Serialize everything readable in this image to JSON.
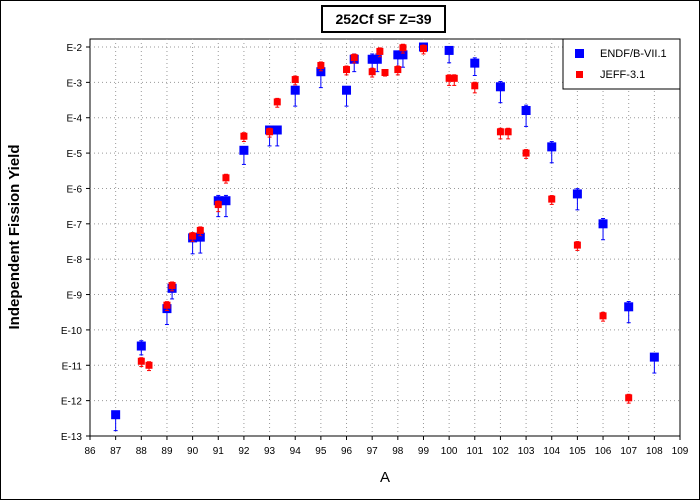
{
  "chart_data": {
    "type": "scatter",
    "title": "252Cf SF Z=39",
    "xlabel": "A",
    "ylabel": "Independent Fission Yield",
    "xlim": [
      86,
      109
    ],
    "ylog": true,
    "ylim_exp": [
      -13,
      -2
    ],
    "ytick_labels": [
      "E-2",
      "E-3",
      "E-4",
      "E-5",
      "E-6",
      "E-7",
      "E-8",
      "E-9",
      "E-10",
      "E-11",
      "E-12",
      "E-13"
    ],
    "xtick_labels": [
      "86",
      "87",
      "88",
      "89",
      "90",
      "91",
      "92",
      "93",
      "94",
      "95",
      "96",
      "97",
      "98",
      "99",
      "100",
      "101",
      "102",
      "103",
      "104",
      "105",
      "106",
      "107",
      "108",
      "109"
    ],
    "grid": true,
    "legend_position": "top-right",
    "series": [
      {
        "name": "ENDF/B-VII.1",
        "color": "#0000ff",
        "marker": "square",
        "points": [
          {
            "x": 87,
            "y": 4e-13,
            "err_up_exp": 0.1,
            "err_down_exp": 0.45
          },
          {
            "x": 88,
            "y": 3.5e-11,
            "err_up_exp": 0.15,
            "err_down_exp": 0.25
          },
          {
            "x": 89,
            "y": 4e-10,
            "err_up_exp": 0.1,
            "err_down_exp": 0.45
          },
          {
            "x": 89.2,
            "y": 1.5e-09,
            "err_up_exp": 0.1,
            "err_down_exp": 0.3
          },
          {
            "x": 90,
            "y": 4e-08,
            "err_up_exp": 0.1,
            "err_down_exp": 0.45
          },
          {
            "x": 90.3,
            "y": 4.2e-08,
            "err_up_exp": 0.1,
            "err_down_exp": 0.45
          },
          {
            "x": 91,
            "y": 4.5e-07,
            "err_up_exp": 0.15,
            "err_down_exp": 0.45
          },
          {
            "x": 91.3,
            "y": 4.5e-07,
            "err_up_exp": 0.15,
            "err_down_exp": 0.45
          },
          {
            "x": 92,
            "y": 1.2e-05,
            "err_up_exp": 0.1,
            "err_down_exp": 0.4
          },
          {
            "x": 93,
            "y": 4.5e-05,
            "err_up_exp": 0.1,
            "err_down_exp": 0.45
          },
          {
            "x": 93.3,
            "y": 4.5e-05,
            "err_up_exp": 0.1,
            "err_down_exp": 0.45
          },
          {
            "x": 94,
            "y": 0.0006,
            "err_up_exp": 0.1,
            "err_down_exp": 0.45
          },
          {
            "x": 95,
            "y": 0.002,
            "err_up_exp": 0.1,
            "err_down_exp": 0.45
          },
          {
            "x": 96,
            "y": 0.0006,
            "err_up_exp": 0.1,
            "err_down_exp": 0.45
          },
          {
            "x": 96.3,
            "y": 0.0045,
            "err_up_exp": 0.15,
            "err_down_exp": 0.35
          },
          {
            "x": 97,
            "y": 0.0045,
            "err_up_exp": 0.15,
            "err_down_exp": 0.35
          },
          {
            "x": 97.2,
            "y": 0.0045,
            "err_up_exp": 0.15,
            "err_down_exp": 0.35
          },
          {
            "x": 98,
            "y": 0.006,
            "err_up_exp": 0.1,
            "err_down_exp": 0.35
          },
          {
            "x": 98.2,
            "y": 0.006,
            "err_up_exp": 0.1,
            "err_down_exp": 0.35
          },
          {
            "x": 99,
            "y": 0.01,
            "err_up_exp": 0.05,
            "err_down_exp": 0.1
          },
          {
            "x": 100,
            "y": 0.008,
            "err_up_exp": 0.1,
            "err_down_exp": 0.35
          },
          {
            "x": 101,
            "y": 0.0035,
            "err_up_exp": 0.15,
            "err_down_exp": 0.35
          },
          {
            "x": 102,
            "y": 0.00075,
            "err_up_exp": 0.15,
            "err_down_exp": 0.45
          },
          {
            "x": 103,
            "y": 0.00016,
            "err_up_exp": 0.15,
            "err_down_exp": 0.45
          },
          {
            "x": 104,
            "y": 1.5e-05,
            "err_up_exp": 0.15,
            "err_down_exp": 0.45
          },
          {
            "x": 105,
            "y": 7e-07,
            "err_up_exp": 0.15,
            "err_down_exp": 0.45
          },
          {
            "x": 106,
            "y": 1e-07,
            "err_up_exp": 0.15,
            "err_down_exp": 0.45
          },
          {
            "x": 107,
            "y": 4.5e-10,
            "err_up_exp": 0.15,
            "err_down_exp": 0.45
          },
          {
            "x": 108,
            "y": 1.7e-11,
            "err_up_exp": 0.1,
            "err_down_exp": 0.45
          }
        ]
      },
      {
        "name": "JEFF-3.1",
        "color": "#ff0000",
        "marker": "square",
        "points": [
          {
            "x": 88,
            "y": 1.3e-11,
            "err_up_exp": 0.1,
            "err_down_exp": 0.15
          },
          {
            "x": 88.3,
            "y": 1e-11,
            "err_up_exp": 0.1,
            "err_down_exp": 0.15
          },
          {
            "x": 89,
            "y": 5e-10,
            "err_up_exp": 0.1,
            "err_down_exp": 0.15
          },
          {
            "x": 89.2,
            "y": 1.8e-09,
            "err_up_exp": 0.1,
            "err_down_exp": 0.15
          },
          {
            "x": 90,
            "y": 4.5e-08,
            "err_up_exp": 0.1,
            "err_down_exp": 0.15
          },
          {
            "x": 90.3,
            "y": 6.5e-08,
            "err_up_exp": 0.1,
            "err_down_exp": 0.15
          },
          {
            "x": 91,
            "y": 3.5e-07,
            "err_up_exp": 0.1,
            "err_down_exp": 0.2
          },
          {
            "x": 91.3,
            "y": 2e-06,
            "err_up_exp": 0.1,
            "err_down_exp": 0.15
          },
          {
            "x": 92,
            "y": 3e-05,
            "err_up_exp": 0.1,
            "err_down_exp": 0.15
          },
          {
            "x": 93,
            "y": 4e-05,
            "err_up_exp": 0.1,
            "err_down_exp": 0.15
          },
          {
            "x": 93.3,
            "y": 0.00028,
            "err_up_exp": 0.1,
            "err_down_exp": 0.15
          },
          {
            "x": 94,
            "y": 0.0012,
            "err_up_exp": 0.1,
            "err_down_exp": 0.15
          },
          {
            "x": 95,
            "y": 0.003,
            "err_up_exp": 0.1,
            "err_down_exp": 0.15
          },
          {
            "x": 96,
            "y": 0.0023,
            "err_up_exp": 0.1,
            "err_down_exp": 0.15
          },
          {
            "x": 96.3,
            "y": 0.005,
            "err_up_exp": 0.1,
            "err_down_exp": 0.15
          },
          {
            "x": 97,
            "y": 0.002,
            "err_up_exp": 0.1,
            "err_down_exp": 0.15
          },
          {
            "x": 97.3,
            "y": 0.0075,
            "err_up_exp": 0.1,
            "err_down_exp": 0.15
          },
          {
            "x": 97.5,
            "y": 0.0019,
            "err_up_exp": 0.05,
            "err_down_exp": 0.1
          },
          {
            "x": 98,
            "y": 0.0023,
            "err_up_exp": 0.1,
            "err_down_exp": 0.15
          },
          {
            "x": 98.2,
            "y": 0.0095,
            "err_up_exp": 0.1,
            "err_down_exp": 0.15
          },
          {
            "x": 99,
            "y": 0.009,
            "err_up_exp": 0.1,
            "err_down_exp": 0.15
          },
          {
            "x": 100,
            "y": 0.0013,
            "err_up_exp": 0.1,
            "err_down_exp": 0.2
          },
          {
            "x": 100.2,
            "y": 0.0013,
            "err_up_exp": 0.1,
            "err_down_exp": 0.2
          },
          {
            "x": 101,
            "y": 0.0008,
            "err_up_exp": 0.1,
            "err_down_exp": 0.2
          },
          {
            "x": 102,
            "y": 4e-05,
            "err_up_exp": 0.1,
            "err_down_exp": 0.2
          },
          {
            "x": 102.3,
            "y": 4e-05,
            "err_up_exp": 0.1,
            "err_down_exp": 0.2
          },
          {
            "x": 103,
            "y": 1e-05,
            "err_up_exp": 0.1,
            "err_down_exp": 0.15
          },
          {
            "x": 104,
            "y": 5e-07,
            "err_up_exp": 0.1,
            "err_down_exp": 0.15
          },
          {
            "x": 105,
            "y": 2.5e-08,
            "err_up_exp": 0.1,
            "err_down_exp": 0.15
          },
          {
            "x": 106,
            "y": 2.5e-10,
            "err_up_exp": 0.1,
            "err_down_exp": 0.15
          },
          {
            "x": 107,
            "y": 1.2e-12,
            "err_up_exp": 0.1,
            "err_down_exp": 0.15
          }
        ]
      }
    ]
  }
}
